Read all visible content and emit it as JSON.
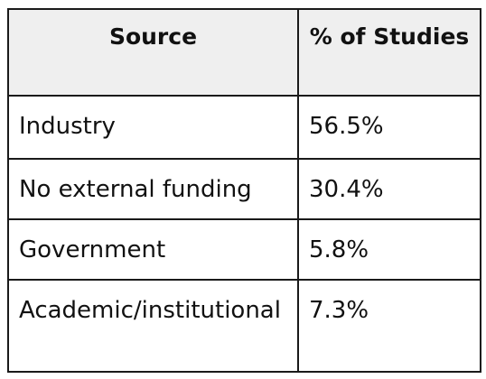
{
  "table": {
    "headers": [
      "Source",
      "% of Studies"
    ],
    "rows": [
      {
        "source": "Industry",
        "percent": "56.5%"
      },
      {
        "source": "No external funding",
        "percent": "30.4%"
      },
      {
        "source": "Government",
        "percent": "5.8%"
      },
      {
        "source": "Academic/institutional",
        "percent": "7.3%"
      }
    ]
  }
}
